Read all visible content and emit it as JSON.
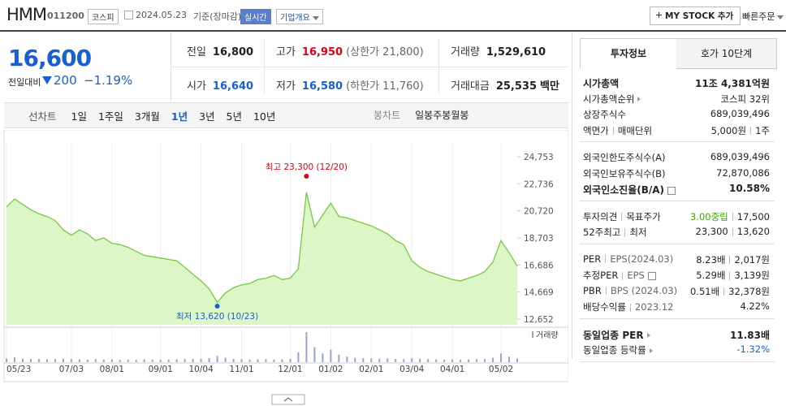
{
  "header": {
    "name": "HMM",
    "code": "011200",
    "market": "코스피",
    "date": "2024.05.23",
    "basis": "기준(장마감)",
    "realtime": "실시간",
    "overview": "기업개요",
    "mystock": "MY STOCK 추가",
    "quick_order": "빠른주문"
  },
  "quote": {
    "price": "16,600",
    "change_label": "전일대비",
    "change": "200",
    "change_rate": "−1.19%"
  },
  "stats": [
    [
      {
        "label": "전일",
        "value": "16,800"
      },
      {
        "label": "고가",
        "value": "16,950",
        "note": "(상한가 21,800)",
        "color": "#e0001b"
      },
      {
        "label": "거래량",
        "value": "1,529,610"
      }
    ],
    [
      {
        "label": "시가",
        "value": "16,640",
        "color": "#1a5fd0"
      },
      {
        "label": "저가",
        "value": "16,580",
        "note": "(하한가 11,760)",
        "color": "#1a5fd0"
      },
      {
        "label": "거래대금",
        "value": "25,535",
        "note": "백만"
      }
    ]
  ],
  "period_tabs": {
    "line_label": "선차트",
    "line": [
      "1일",
      "1주일",
      "3개월",
      "1년",
      "3년",
      "5년",
      "10년"
    ],
    "selected": 3,
    "candle_label": "봉차트",
    "candle": [
      "일봉",
      "주봉",
      "월봉"
    ]
  },
  "info_tabs": [
    "투자정보",
    "호가 10단계"
  ],
  "info_sections": [
    [
      {
        "label": [
          "시가총액"
        ],
        "value": [
          "11조 4,381억원"
        ],
        "bold": true
      },
      {
        "label": [
          "시가총액순위"
        ],
        "arrow": true,
        "value": [
          "코스피 32위"
        ]
      },
      {
        "label": [
          "상장주식수"
        ],
        "value": [
          "689,039,496"
        ]
      },
      {
        "label": [
          "액면가",
          "매매단위"
        ],
        "value": [
          "5,000원",
          "1주"
        ]
      }
    ],
    [
      {
        "label": [
          "외국인한도주식수(A)"
        ],
        "value": [
          "689,039,496"
        ]
      },
      {
        "label": [
          "외국인보유주식수(B)"
        ],
        "value": [
          "72,870,086"
        ]
      },
      {
        "label": [
          "외국인소진율(B/A)"
        ],
        "help": true,
        "value": [
          "10.58%"
        ],
        "bold": true
      }
    ],
    [
      {
        "label": [
          "투자의견",
          "목표주가"
        ],
        "value": [
          "3.00중립",
          "17,500"
        ],
        "value_color": "#3ea800"
      },
      {
        "label": [
          "52주최고",
          "최저"
        ],
        "value": [
          "23,300",
          "13,620"
        ]
      }
    ],
    [
      {
        "label": [
          "PER",
          "EPS(2024.03)"
        ],
        "value": [
          "8.23배",
          "2,017원"
        ]
      },
      {
        "label": [
          "추정PER",
          "EPS"
        ],
        "help": true,
        "value": [
          "5.29배",
          "3,139원"
        ]
      },
      {
        "label": [
          "PBR",
          "BPS (2024.03)"
        ],
        "value": [
          "0.51배",
          "32,378원"
        ]
      },
      {
        "label": [
          "배당수익률",
          "2023.12"
        ],
        "value": [
          "4.22%"
        ]
      }
    ],
    [
      {
        "label": [
          "동일업종 PER"
        ],
        "arrow": true,
        "value": [
          "11.83배"
        ],
        "bold": true
      },
      {
        "label": [
          "동일업종 등락률"
        ],
        "arrow": true,
        "value": [
          "-1.32%"
        ],
        "value_color": "#1a5fd0"
      }
    ]
  ],
  "chart_data": {
    "type": "line",
    "color": "#76c93f",
    "fill": "#dcf6c8",
    "categories": [
      "05/23",
      null,
      null,
      null,
      null,
      null,
      null,
      null,
      "07/03",
      null,
      null,
      null,
      null,
      "08/01",
      null,
      null,
      null,
      null,
      null,
      "09/01",
      null,
      null,
      null,
      null,
      "10/04",
      null,
      null,
      null,
      null,
      "11/01",
      null,
      null,
      null,
      null,
      null,
      "12/01",
      null,
      null,
      null,
      null,
      "01/02",
      null,
      null,
      null,
      null,
      "02/01",
      null,
      null,
      null,
      null,
      "03/04",
      null,
      null,
      null,
      null,
      "04/01",
      null,
      null,
      null,
      null,
      null,
      "05/02",
      null,
      null
    ],
    "values": [
      21000,
      21600,
      21200,
      20800,
      20500,
      20300,
      20000,
      19300,
      18900,
      19300,
      19000,
      18500,
      18700,
      18300,
      18200,
      18000,
      17700,
      17400,
      17300,
      17200,
      17100,
      17000,
      16500,
      16000,
      15500,
      14900,
      13900,
      14600,
      15000,
      15200,
      15300,
      15600,
      15700,
      15900,
      15600,
      15700,
      16400,
      22100,
      19500,
      20400,
      21300,
      20300,
      20200,
      20000,
      19800,
      19600,
      19300,
      19000,
      18500,
      18200,
      17000,
      16500,
      16200,
      16000,
      15800,
      15600,
      15500,
      15700,
      15900,
      16200,
      16900,
      18500,
      17600,
      16600
    ],
    "ylim": [
      12228,
      25237
    ],
    "yticks": [
      {
        "value": 24753,
        "label": "24,753"
      },
      {
        "value": 22736,
        "label": "22,736"
      },
      {
        "value": 20720,
        "label": "20,720"
      },
      {
        "value": 18703,
        "label": "18,703"
      },
      {
        "value": 16686,
        "label": "16,686"
      },
      {
        "value": 14669,
        "label": "14,669"
      },
      {
        "value": 12652,
        "label": "12,652"
      }
    ],
    "annotations": [
      {
        "text": "최고 23,300 (12/20)",
        "value": 23300,
        "index": 37,
        "color": "#e0001b"
      },
      {
        "text": "최저 13,620 (10/23)",
        "value": 13620,
        "index": 26,
        "color": "#1a5fd0"
      }
    ],
    "volume": {
      "name": "거래량",
      "color": "#9aa3c9",
      "y2lim": [
        0,
        13000000
      ],
      "values": [
        1500000,
        2000000,
        1400000,
        1300000,
        1200000,
        1100000,
        1300000,
        1400000,
        1200000,
        1100000,
        1000000,
        1200000,
        1000000,
        1100000,
        900000,
        1000000,
        900000,
        1100000,
        1000000,
        900000,
        1000000,
        1100000,
        1200000,
        1300000,
        1400000,
        1600000,
        2500000,
        1800000,
        1300000,
        1200000,
        1000000,
        1100000,
        1200000,
        1000000,
        1100000,
        1300000,
        4000000,
        12000000,
        6000000,
        3500000,
        5000000,
        3000000,
        2200000,
        1800000,
        1600000,
        1500000,
        1400000,
        1500000,
        1300000,
        1200000,
        1600000,
        1400000,
        1200000,
        1100000,
        1000000,
        1100000,
        1000000,
        1100000,
        1200000,
        1300000,
        1800000,
        3500000,
        2200000,
        1500000
      ]
    }
  }
}
